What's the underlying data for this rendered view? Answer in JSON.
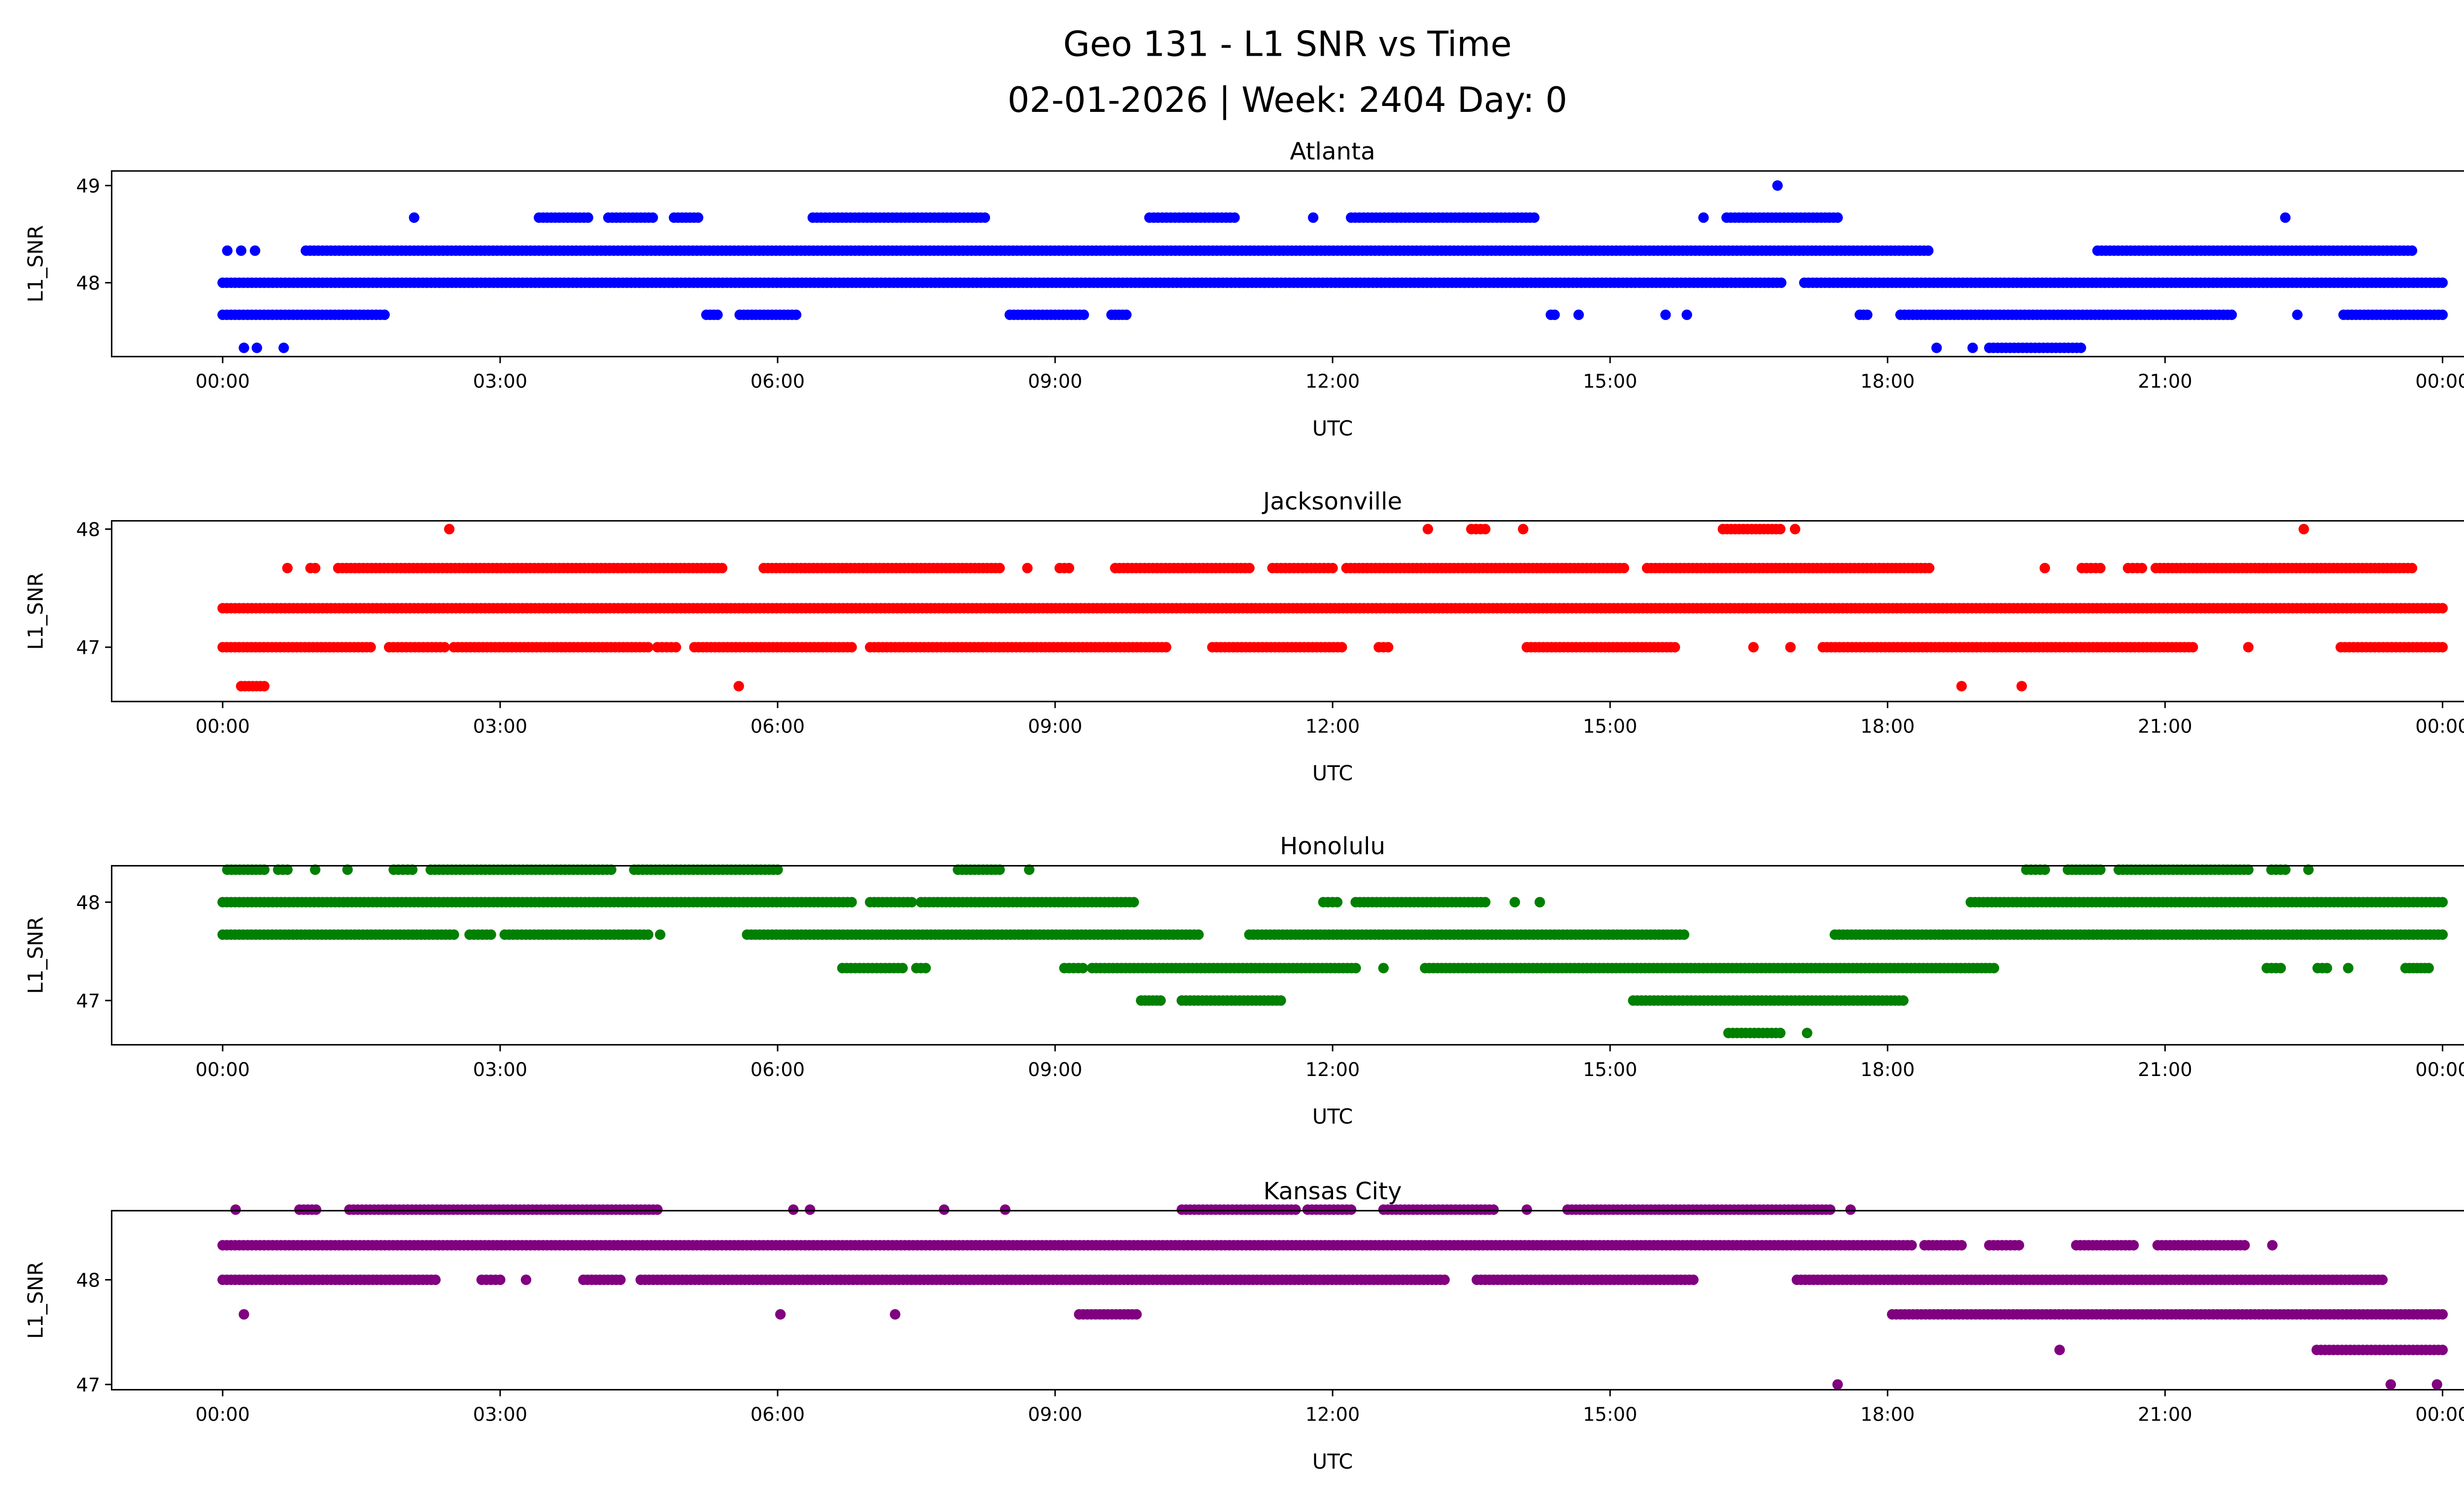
{
  "title_line1": "Geo 131 - L1 SNR vs Time",
  "title_line2": "02-01-2026 | Week: 2404 Day: 0",
  "chart_data": [
    {
      "type": "scatter",
      "title": "Atlanta",
      "xlabel": "UTC",
      "ylabel": "L1_SNR",
      "color": "#0000ff",
      "xlim": [
        -1.2,
        25.2
      ],
      "ylim": [
        47.24,
        49.15
      ],
      "yticks": [
        48,
        49
      ],
      "ytick_labels": [
        "48",
        "49"
      ],
      "xticks": [
        0,
        3,
        6,
        9,
        12,
        15,
        18,
        21,
        24
      ],
      "xtick_labels": [
        "00:00",
        "03:00",
        "06:00",
        "09:00",
        "12:00",
        "15:00",
        "18:00",
        "21:00",
        "00:00"
      ],
      "runs": [
        [
          48.0,
          0,
          16.85
        ],
        [
          48.0,
          17.1,
          24
        ],
        [
          48.33,
          0.05,
          0.05
        ],
        [
          48.33,
          0.2,
          0.2
        ],
        [
          48.33,
          0.35,
          0.35
        ],
        [
          48.33,
          0.9,
          18.44
        ],
        [
          48.33,
          20.27,
          23.67
        ],
        [
          47.67,
          0,
          1.75
        ],
        [
          47.67,
          5.23,
          5.35
        ],
        [
          47.67,
          5.59,
          6.2
        ],
        [
          47.67,
          8.51,
          9.31
        ],
        [
          47.67,
          9.61,
          9.77
        ],
        [
          47.67,
          14.36,
          14.4
        ],
        [
          47.67,
          14.66,
          14.66
        ],
        [
          47.67,
          15.6,
          15.6
        ],
        [
          47.67,
          15.83,
          15.83
        ],
        [
          47.67,
          17.7,
          17.78
        ],
        [
          47.67,
          18.14,
          21.72
        ],
        [
          47.67,
          22.43,
          22.43
        ],
        [
          47.67,
          22.93,
          24
        ],
        [
          48.67,
          2.07,
          2.07
        ],
        [
          48.67,
          3.42,
          3.95
        ],
        [
          48.67,
          4.17,
          4.65
        ],
        [
          48.67,
          4.88,
          5.14
        ],
        [
          48.67,
          6.38,
          8.24
        ],
        [
          48.67,
          10.02,
          10.94
        ],
        [
          48.67,
          11.79,
          11.79
        ],
        [
          48.67,
          12.2,
          14.18
        ],
        [
          48.67,
          16.01,
          16.01
        ],
        [
          48.67,
          16.26,
          17.46
        ],
        [
          48.67,
          22.3,
          22.3
        ],
        [
          47.33,
          0.23,
          0.23
        ],
        [
          47.33,
          0.37,
          0.37
        ],
        [
          47.33,
          0.66,
          0.66
        ],
        [
          47.33,
          18.53,
          18.53
        ],
        [
          47.33,
          18.92,
          18.92
        ],
        [
          47.33,
          19.1,
          20.09
        ],
        [
          49.0,
          16.81,
          16.81
        ]
      ]
    },
    {
      "type": "scatter",
      "title": "Jacksonville",
      "xlabel": "UTC",
      "ylabel": "L1_SNR",
      "color": "#ff0000",
      "xlim": [
        -1.2,
        25.2
      ],
      "ylim": [
        46.54,
        48.07
      ],
      "yticks": [
        47,
        48
      ],
      "ytick_labels": [
        "47",
        "48"
      ],
      "xticks": [
        0,
        3,
        6,
        9,
        12,
        15,
        18,
        21,
        24
      ],
      "xtick_labels": [
        "00:00",
        "03:00",
        "06:00",
        "09:00",
        "12:00",
        "15:00",
        "18:00",
        "21:00",
        "00:00"
      ],
      "runs": [
        [
          47.33,
          0,
          24
        ],
        [
          47.0,
          0,
          1.6
        ],
        [
          47.0,
          1.8,
          2.4
        ],
        [
          47.0,
          2.5,
          4.6
        ],
        [
          47.0,
          4.7,
          4.9
        ],
        [
          47.0,
          5.1,
          6.8
        ],
        [
          47.0,
          7.0,
          10.2
        ],
        [
          47.0,
          10.7,
          12.1
        ],
        [
          47.0,
          12.5,
          12.6
        ],
        [
          47.0,
          14.1,
          15.7
        ],
        [
          47.0,
          16.55,
          16.55
        ],
        [
          47.0,
          16.95,
          16.95
        ],
        [
          47.0,
          17.3,
          21.3
        ],
        [
          47.0,
          21.9,
          21.9
        ],
        [
          47.0,
          22.9,
          24
        ],
        [
          47.67,
          0.7,
          0.7
        ],
        [
          47.67,
          0.95,
          1.0
        ],
        [
          47.67,
          1.25,
          5.4
        ],
        [
          47.67,
          5.85,
          8.4
        ],
        [
          47.67,
          8.7,
          8.7
        ],
        [
          47.67,
          9.05,
          9.15
        ],
        [
          47.67,
          9.65,
          11.1
        ],
        [
          47.67,
          11.35,
          12.0
        ],
        [
          47.67,
          12.15,
          15.15
        ],
        [
          47.67,
          15.4,
          18.45
        ],
        [
          47.67,
          19.7,
          19.7
        ],
        [
          47.67,
          20.1,
          20.3
        ],
        [
          47.67,
          20.6,
          20.75
        ],
        [
          47.67,
          20.9,
          23.67
        ],
        [
          48.0,
          2.45,
          2.45
        ],
        [
          48.0,
          13.03,
          13.03
        ],
        [
          48.0,
          13.5,
          13.65
        ],
        [
          48.0,
          14.06,
          14.06
        ],
        [
          48.0,
          16.22,
          16.84
        ],
        [
          48.0,
          17.0,
          17.0
        ],
        [
          48.0,
          22.5,
          22.5
        ],
        [
          46.67,
          0.2,
          0.45
        ],
        [
          46.67,
          5.58,
          5.58
        ],
        [
          46.67,
          18.8,
          18.8
        ],
        [
          46.67,
          19.45,
          19.45
        ]
      ]
    },
    {
      "type": "scatter",
      "title": "Honolulu",
      "xlabel": "UTC",
      "ylabel": "L1_SNR",
      "color": "#008000",
      "xlim": [
        -1.2,
        25.2
      ],
      "ylim": [
        46.55,
        48.37
      ],
      "yticks": [
        47,
        48
      ],
      "ytick_labels": [
        "47",
        "48"
      ],
      "xticks": [
        0,
        3,
        6,
        9,
        12,
        15,
        18,
        21,
        24
      ],
      "xtick_labels": [
        "00:00",
        "03:00",
        "06:00",
        "09:00",
        "12:00",
        "15:00",
        "18:00",
        "21:00",
        "00:00"
      ],
      "runs": [
        [
          48.33,
          0.05,
          0.45
        ],
        [
          48.33,
          0.6,
          0.7
        ],
        [
          48.33,
          1.0,
          1.0
        ],
        [
          48.33,
          1.35,
          1.35
        ],
        [
          48.33,
          1.85,
          2.05
        ],
        [
          48.33,
          2.25,
          4.2
        ],
        [
          48.33,
          4.45,
          6.0
        ],
        [
          48.33,
          7.95,
          8.4
        ],
        [
          48.33,
          8.72,
          8.72
        ],
        [
          48.33,
          19.5,
          19.7
        ],
        [
          48.33,
          19.95,
          20.3
        ],
        [
          48.33,
          20.5,
          21.9
        ],
        [
          48.33,
          22.15,
          22.3
        ],
        [
          48.33,
          22.55,
          22.55
        ],
        [
          48.0,
          0,
          6.8
        ],
        [
          48.0,
          7.0,
          7.45
        ],
        [
          48.0,
          7.55,
          9.85
        ],
        [
          48.0,
          11.9,
          12.05
        ],
        [
          48.0,
          12.25,
          13.65
        ],
        [
          48.0,
          13.97,
          13.97
        ],
        [
          48.0,
          14.24,
          14.24
        ],
        [
          48.0,
          18.9,
          24
        ],
        [
          47.67,
          0,
          2.5
        ],
        [
          47.67,
          2.67,
          2.9
        ],
        [
          47.67,
          3.05,
          4.6
        ],
        [
          47.67,
          4.73,
          4.73
        ],
        [
          47.67,
          5.67,
          10.55
        ],
        [
          47.67,
          11.1,
          15.8
        ],
        [
          47.67,
          17.43,
          24
        ],
        [
          47.33,
          6.7,
          7.35
        ],
        [
          47.33,
          7.5,
          7.6
        ],
        [
          47.33,
          9.1,
          9.3
        ],
        [
          47.33,
          9.4,
          12.25
        ],
        [
          47.33,
          12.55,
          12.55
        ],
        [
          47.33,
          13.0,
          19.15
        ],
        [
          47.33,
          22.1,
          22.25
        ],
        [
          47.33,
          22.65,
          22.75
        ],
        [
          47.33,
          22.98,
          22.98
        ],
        [
          47.33,
          23.6,
          23.85
        ],
        [
          47.0,
          9.93,
          10.14
        ],
        [
          47.0,
          10.37,
          11.44
        ],
        [
          47.0,
          15.25,
          18.17
        ],
        [
          46.67,
          16.28,
          16.84
        ],
        [
          46.67,
          17.13,
          17.13
        ]
      ]
    },
    {
      "type": "scatter",
      "title": "Kansas City",
      "xlabel": "UTC",
      "ylabel": "L1_SNR",
      "color": "#800080",
      "xlim": [
        -1.2,
        25.2
      ],
      "ylim": [
        46.95,
        48.66
      ],
      "yticks": [
        47,
        48
      ],
      "ytick_labels": [
        "47",
        "48"
      ],
      "xticks": [
        0,
        3,
        6,
        9,
        12,
        15,
        18,
        21,
        24
      ],
      "xtick_labels": [
        "00:00",
        "03:00",
        "06:00",
        "09:00",
        "12:00",
        "15:00",
        "18:00",
        "21:00",
        "00:00"
      ],
      "runs": [
        [
          48.33,
          0,
          18.26
        ],
        [
          48.33,
          18.4,
          18.8
        ],
        [
          48.33,
          19.1,
          19.42
        ],
        [
          48.33,
          20.04,
          20.66
        ],
        [
          48.33,
          20.92,
          21.86
        ],
        [
          48.33,
          22.16,
          22.16
        ],
        [
          48.0,
          0,
          2.3
        ],
        [
          48.0,
          2.8,
          3.0
        ],
        [
          48.0,
          3.28,
          3.28
        ],
        [
          48.0,
          3.9,
          4.3
        ],
        [
          48.0,
          4.52,
          13.21
        ],
        [
          48.0,
          13.56,
          15.9
        ],
        [
          48.0,
          17.02,
          23.35
        ],
        [
          48.67,
          0.14,
          0.14
        ],
        [
          48.67,
          0.83,
          1.01
        ],
        [
          48.67,
          1.37,
          4.7
        ],
        [
          48.67,
          6.17,
          6.17
        ],
        [
          48.67,
          6.35,
          6.35
        ],
        [
          48.67,
          7.8,
          7.8
        ],
        [
          48.67,
          8.46,
          8.46
        ],
        [
          48.67,
          10.37,
          11.6
        ],
        [
          48.67,
          11.73,
          12.2
        ],
        [
          48.67,
          12.55,
          13.74
        ],
        [
          48.67,
          14.1,
          14.1
        ],
        [
          48.67,
          14.54,
          17.38
        ],
        [
          48.67,
          17.6,
          17.6
        ],
        [
          47.67,
          0.23,
          0.23
        ],
        [
          47.67,
          6.03,
          6.03
        ],
        [
          47.67,
          7.27,
          7.27
        ],
        [
          47.67,
          9.26,
          9.88
        ],
        [
          47.67,
          18.05,
          24
        ],
        [
          47.33,
          19.86,
          19.86
        ],
        [
          47.33,
          22.64,
          24
        ],
        [
          47.0,
          17.46,
          17.46
        ],
        [
          47.0,
          23.44,
          23.44
        ],
        [
          47.0,
          23.94,
          23.94
        ]
      ]
    }
  ]
}
